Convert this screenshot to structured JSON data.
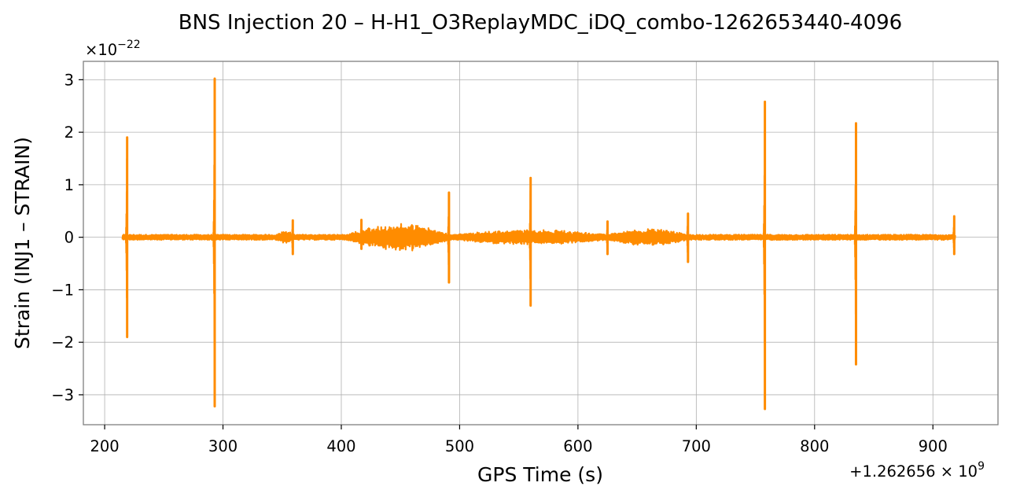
{
  "chart_data": {
    "type": "line",
    "title": "BNS Injection 20 – H-H1_O3ReplayMDC_iDQ_combo-1262653440-4096",
    "xlabel": "GPS Time (s)",
    "ylabel": "Strain (INJ1 – STRAIN)",
    "x_offset_label": "+1.262656 × 10",
    "x_offset_exponent": "9",
    "y_scale_label": "×10",
    "y_scale_exponent": "−22",
    "xlim": [
      182,
      955
    ],
    "ylim": [
      -3.57,
      3.35
    ],
    "xticks": [
      200,
      300,
      400,
      500,
      600,
      700,
      800,
      900
    ],
    "xtick_labels": [
      "200",
      "300",
      "400",
      "500",
      "600",
      "700",
      "800",
      "900"
    ],
    "yticks": [
      -3,
      -2,
      -1,
      0,
      1,
      2,
      3
    ],
    "ytick_labels": [
      "−3",
      "−2",
      "−1",
      "0",
      "1",
      "2",
      "3"
    ],
    "grid": true,
    "series_color": "#ff8c00",
    "series": [
      {
        "data_range": [
          215,
          919
        ],
        "baseline_amplitude": 0.05,
        "envelopes": [
          {
            "x0": 345,
            "x1": 360,
            "amp": 0.12
          },
          {
            "x0": 405,
            "x1": 492,
            "amp": 0.28
          },
          {
            "x0": 495,
            "x1": 625,
            "amp": 0.15
          },
          {
            "x0": 625,
            "x1": 693,
            "amp": 0.17
          }
        ],
        "spikes": [
          {
            "x": 219,
            "max": 1.9,
            "min": -1.9
          },
          {
            "x": 293,
            "max": 3.02,
            "min": -3.22
          },
          {
            "x": 359,
            "max": 0.32,
            "min": -0.32
          },
          {
            "x": 417,
            "max": 0.33,
            "min": -0.22
          },
          {
            "x": 491,
            "max": 0.85,
            "min": -0.86
          },
          {
            "x": 560,
            "max": 1.13,
            "min": -1.3
          },
          {
            "x": 625,
            "max": 0.3,
            "min": -0.32
          },
          {
            "x": 693,
            "max": 0.45,
            "min": -0.47
          },
          {
            "x": 758,
            "max": 2.58,
            "min": -3.27
          },
          {
            "x": 835,
            "max": 2.17,
            "min": -2.42
          },
          {
            "x": 918,
            "max": 0.4,
            "min": -0.32
          }
        ]
      }
    ]
  }
}
